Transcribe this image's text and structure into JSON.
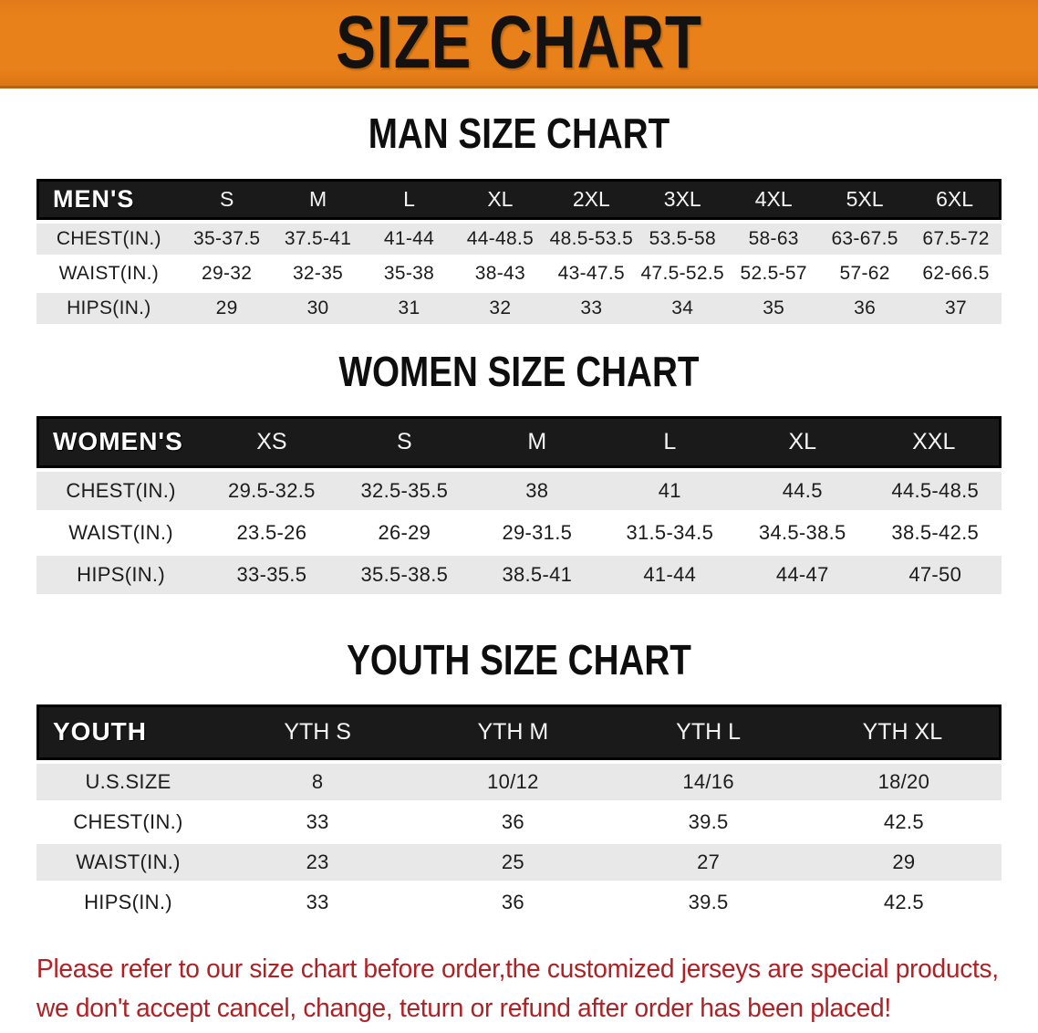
{
  "banner": {
    "title": "SIZE CHART"
  },
  "men": {
    "heading": "MAN SIZE CHART",
    "corner": "MEN'S",
    "sizes": [
      "S",
      "M",
      "L",
      "XL",
      "2XL",
      "3XL",
      "4XL",
      "5XL",
      "6XL"
    ],
    "rows": [
      {
        "label": "CHEST(IN.)",
        "values": [
          "35-37.5",
          "37.5-41",
          "41-44",
          "44-48.5",
          "48.5-53.5",
          "53.5-58",
          "58-63",
          "63-67.5",
          "67.5-72"
        ]
      },
      {
        "label": "WAIST(IN.)",
        "values": [
          "29-32",
          "32-35",
          "35-38",
          "38-43",
          "43-47.5",
          "47.5-52.5",
          "52.5-57",
          "57-62",
          "62-66.5"
        ]
      },
      {
        "label": "HIPS(IN.)",
        "values": [
          "29",
          "30",
          "31",
          "32",
          "33",
          "34",
          "35",
          "36",
          "37"
        ]
      }
    ]
  },
  "women": {
    "heading": "WOMEN SIZE CHART",
    "corner": "WOMEN'S",
    "sizes": [
      "XS",
      "S",
      "M",
      "L",
      "XL",
      "XXL"
    ],
    "rows": [
      {
        "label": "CHEST(IN.)",
        "values": [
          "29.5-32.5",
          "32.5-35.5",
          "38",
          "41",
          "44.5",
          "44.5-48.5"
        ]
      },
      {
        "label": "WAIST(IN.)",
        "values": [
          "23.5-26",
          "26-29",
          "29-31.5",
          "31.5-34.5",
          "34.5-38.5",
          "38.5-42.5"
        ]
      },
      {
        "label": "HIPS(IN.)",
        "values": [
          "33-35.5",
          "35.5-38.5",
          "38.5-41",
          "41-44",
          "44-47",
          "47-50"
        ]
      }
    ]
  },
  "youth": {
    "heading": "YOUTH SIZE CHART",
    "corner": "YOUTH",
    "sizes": [
      "YTH S",
      "YTH M",
      "YTH L",
      "YTH XL"
    ],
    "rows": [
      {
        "label": "U.S.SIZE",
        "values": [
          "8",
          "10/12",
          "14/16",
          "18/20"
        ]
      },
      {
        "label": "CHEST(IN.)",
        "values": [
          "33",
          "36",
          "39.5",
          "42.5"
        ]
      },
      {
        "label": "WAIST(IN.)",
        "values": [
          "23",
          "25",
          "27",
          "29"
        ]
      },
      {
        "label": "HIPS(IN.)",
        "values": [
          "33",
          "36",
          "39.5",
          "42.5"
        ]
      }
    ]
  },
  "footer": {
    "lines": [
      "Please refer to our size chart before order,the customized jerseys are special products,",
      "we don't accept cancel, change, teturn or refund after order has been placed!"
    ]
  },
  "colors": {
    "banner_orange": "#e8811a",
    "header_black": "#1b1a1a",
    "row_gray": "#e8e8e8",
    "note_red": "#b02125"
  }
}
